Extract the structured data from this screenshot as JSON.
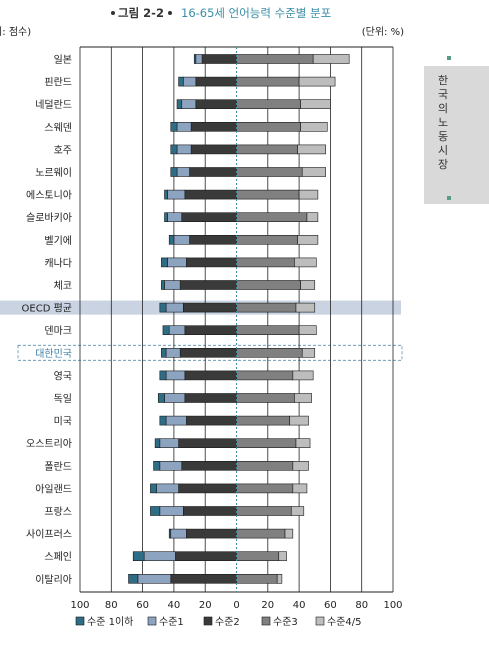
{
  "header": {
    "figure_tag": "그림 2-2",
    "title": "16-65세 언어능력 수준별 분포",
    "left_unit": "(단위: 점수)",
    "right_unit": "(단위: %)"
  },
  "side_tab": {
    "text": "한국의 노동시장"
  },
  "chart_data": {
    "type": "bar",
    "subtype": "diverging-stacked-horizontal",
    "xlim": [
      -100,
      100
    ],
    "xticks": [
      -100,
      -80,
      -60,
      -40,
      -20,
      0,
      20,
      40,
      60,
      80,
      100
    ],
    "xtick_labels": [
      "100",
      "80",
      "60",
      "40",
      "20",
      "0",
      "20",
      "40",
      "60",
      "80",
      "100"
    ],
    "grid": true,
    "legend_position": "bottom",
    "highlighted_categories": [
      "OECD 평균",
      "대한민국"
    ],
    "categories": [
      "일본",
      "핀란드",
      "네덜란드",
      "스웨덴",
      "호주",
      "노르웨이",
      "에스토니아",
      "슬로바키아",
      "벨기에",
      "캐나다",
      "체코",
      "OECD 평균",
      "덴마크",
      "대한민국",
      "영국",
      "독일",
      "미국",
      "오스트리아",
      "폴란드",
      "아일랜드",
      "프랑스",
      "사이프러스",
      "스페인",
      "이탈리아"
    ],
    "series": [
      {
        "name": "수준 1이하",
        "color": "#2f6d86",
        "values": [
          1,
          3,
          3,
          4,
          4,
          4,
          2,
          2,
          3,
          4,
          2,
          4,
          4,
          3,
          4,
          4,
          4,
          3,
          4,
          4,
          6,
          1,
          7,
          6
        ]
      },
      {
        "name": "수준1",
        "color": "#8da4c1",
        "values": [
          4,
          8,
          9,
          9,
          9,
          8,
          11,
          9,
          10,
          12,
          10,
          11,
          10,
          9,
          12,
          13,
          13,
          12,
          14,
          14,
          15,
          10,
          20,
          21
        ]
      },
      {
        "name": "수준2",
        "color": "#3a3a3a",
        "values": [
          22,
          26,
          26,
          29,
          29,
          30,
          33,
          35,
          30,
          32,
          36,
          34,
          33,
          36,
          33,
          33,
          32,
          37,
          35,
          37,
          34,
          32,
          39,
          42
        ]
      },
      {
        "name": "수준3",
        "color": "#808080",
        "values": [
          49,
          40,
          41,
          41,
          39,
          42,
          40,
          45,
          39,
          37,
          41,
          38,
          40,
          42,
          36,
          37,
          34,
          38,
          36,
          36,
          35,
          31,
          27,
          26
        ]
      },
      {
        "name": "수준4/5",
        "color": "#bdbdbd",
        "values": [
          23,
          23,
          19,
          17,
          18,
          15,
          12,
          7,
          13,
          14,
          9,
          12,
          11,
          8,
          13,
          11,
          12,
          9,
          10,
          9,
          8,
          5,
          5,
          3
        ]
      }
    ]
  }
}
